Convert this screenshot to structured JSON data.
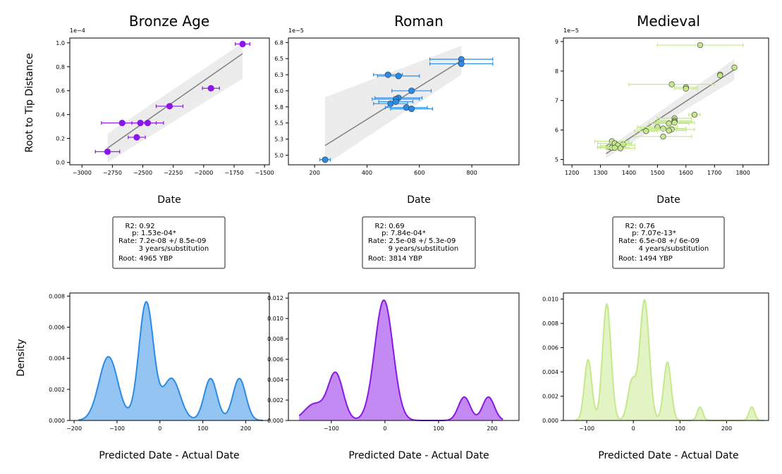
{
  "panel_titles": [
    "Bronze Age",
    "Roman",
    "Medieval"
  ],
  "ylabel_top": "Root to Tip Distance",
  "xlabel_top": "Date",
  "ylabel_bottom": "Density",
  "xlabel_bottom": "Predicted Date - Actual Date",
  "stats": [
    [
      "   R2: 0.92",
      "      p: 1.53e-04*",
      "Rate: 7.2e-08 +/ 8.5e-09",
      "         3 years/substitution",
      "Root: 4965 YBP"
    ],
    [
      "   R2: 0.69",
      "      p: 7.84e-04*",
      "Rate: 2.5e-08 +/ 5.3e-09",
      "         9 years/substitution",
      "Root: 3814 YBP"
    ],
    [
      "   R2: 0.76",
      "      p: 7.07e-13*",
      "Rate: 6.5e-08 +/ 6e-09",
      "         4 years/substitution",
      "Root: 1494 YBP"
    ]
  ],
  "colors": {
    "bronze": "#8a16e8",
    "roman": "#2a8be6",
    "medieval": "#c5e88a",
    "fit": "#808080",
    "band": "#ececec"
  },
  "chart_data": [
    {
      "type": "scatter",
      "title": "Bronze Age",
      "xlabel": "Date",
      "ylabel": "Root to Tip Distance",
      "exponent": "1e−4",
      "xlim": [
        -3100,
        -1460
      ],
      "ylim": [
        -0.02,
        1.04
      ],
      "xticks": [
        -3000,
        -2750,
        -2500,
        -2250,
        -2000,
        -1750,
        -1500
      ],
      "yticks": [
        0.0,
        0.2,
        0.4,
        0.6,
        0.8,
        1.0
      ],
      "x": [
        -1680,
        -2280,
        -1940,
        -2670,
        -2460,
        -2520,
        -2550,
        -2790
      ],
      "xerr": [
        60,
        110,
        70,
        170,
        130,
        130,
        70,
        100
      ],
      "y": [
        0.99,
        0.47,
        0.62,
        0.33,
        0.33,
        0.33,
        0.21,
        0.09
      ],
      "fit_x": [
        -2790,
        -1680
      ],
      "fit_y": [
        0.12,
        0.91
      ],
      "band_low": [
        0.0,
        0.7
      ],
      "band_high": [
        0.24,
        1.0
      ]
    },
    {
      "type": "scatter",
      "title": "Roman",
      "xlabel": "Date",
      "ylabel": "",
      "exponent": "1e−5",
      "xlim": [
        100,
        980
      ],
      "ylim": [
        4.85,
        6.82
      ],
      "xticks": [
        200,
        400,
        600,
        800
      ],
      "yticks": [
        5.0,
        5.25,
        5.5,
        5.75,
        6.0,
        6.25,
        6.5,
        6.75
      ],
      "x": [
        760,
        760,
        480,
        520,
        570,
        520,
        510,
        510,
        490,
        550,
        570,
        240
      ],
      "xerr": [
        120,
        120,
        55,
        80,
        75,
        90,
        90,
        65,
        65,
        80,
        80,
        20
      ],
      "y": [
        6.49,
        6.42,
        6.25,
        6.23,
        6.0,
        5.89,
        5.87,
        5.83,
        5.8,
        5.74,
        5.72,
        4.93
      ],
      "fit_x": [
        240,
        760
      ],
      "fit_y": [
        5.15,
        6.47
      ],
      "band_low": [
        4.85,
        6.25
      ],
      "band_high": [
        5.9,
        6.7
      ]
    },
    {
      "type": "scatter",
      "title": "Medieval",
      "xlabel": "Date",
      "ylabel": "",
      "exponent": "1e−5",
      "xlim": [
        1170,
        1890
      ],
      "ylim": [
        4.82,
        9.12
      ],
      "xticks": [
        1200,
        1300,
        1400,
        1500,
        1600,
        1700,
        1800
      ],
      "yticks": [
        5,
        6,
        7,
        8,
        9
      ],
      "x": [
        1650,
        1770,
        1720,
        1720,
        1550,
        1600,
        1600,
        1630,
        1560,
        1560,
        1560,
        1560,
        1540,
        1500,
        1520,
        1550,
        1540,
        1460,
        1520,
        1380,
        1340,
        1350,
        1360,
        1330,
        1340,
        1350,
        1370
      ],
      "xerr": [
        150,
        0,
        0,
        0,
        150,
        40,
        40,
        20,
        60,
        60,
        60,
        70,
        70,
        70,
        80,
        80,
        60,
        40,
        100,
        30,
        60,
        60,
        60,
        40,
        50,
        50,
        50
      ],
      "y": [
        8.88,
        8.12,
        7.88,
        7.85,
        7.55,
        7.45,
        7.4,
        6.52,
        6.4,
        6.32,
        6.28,
        6.25,
        6.22,
        6.1,
        6.05,
        6.02,
        5.98,
        5.96,
        5.78,
        5.52,
        5.62,
        5.55,
        5.48,
        5.43,
        5.4,
        5.4,
        5.38
      ],
      "fit_x": [
        1320,
        1770
      ],
      "fit_y": [
        5.2,
        8.05
      ],
      "band_low": [
        5.05,
        7.7
      ],
      "band_high": [
        5.35,
        8.4
      ]
    },
    {
      "type": "area",
      "xlabel": "Predicted Date - Actual Date",
      "ylabel": "Density",
      "xlim": [
        -210,
        255
      ],
      "ylim": [
        0,
        0.0082
      ],
      "xticks": [
        -200,
        -100,
        0,
        100,
        200
      ],
      "yticks": [
        0.0,
        0.002,
        0.004,
        0.006,
        0.008
      ],
      "peaks": [
        [
          -120,
          0.0041,
          22
        ],
        [
          -32,
          0.0076,
          17
        ],
        [
          27,
          0.0027,
          20
        ],
        [
          118,
          0.0027,
          15
        ],
        [
          185,
          0.0027,
          15
        ]
      ],
      "range": [
        -190,
        240
      ]
    },
    {
      "type": "area",
      "xlabel": "Predicted Date - Actual Date",
      "ylabel": "",
      "xlim": [
        -180,
        250
      ],
      "ylim": [
        0,
        0.0125
      ],
      "xticks": [
        -100,
        0,
        100,
        200
      ],
      "yticks": [
        0.0,
        0.002,
        0.004,
        0.006,
        0.008,
        0.01,
        0.012
      ],
      "peaks": [
        [
          -132,
          0.0016,
          18
        ],
        [
          -92,
          0.0046,
          14
        ],
        [
          -2,
          0.0118,
          17
        ],
        [
          148,
          0.0023,
          11
        ],
        [
          193,
          0.0023,
          11
        ]
      ],
      "range": [
        -160,
        220
      ]
    },
    {
      "type": "area",
      "xlabel": "Predicted Date - Actual Date",
      "ylabel": "",
      "xlim": [
        -150,
        290
      ],
      "ylim": [
        0,
        0.0105
      ],
      "xticks": [
        -100,
        0,
        100,
        200
      ],
      "yticks": [
        0.0,
        0.002,
        0.004,
        0.006,
        0.008,
        0.01
      ],
      "peaks": [
        [
          -97,
          0.005,
          8
        ],
        [
          -57,
          0.0096,
          9
        ],
        [
          -3,
          0.0032,
          9
        ],
        [
          24,
          0.0099,
          10
        ],
        [
          73,
          0.0048,
          8
        ],
        [
          143,
          0.0011,
          6
        ],
        [
          254,
          0.0011,
          6
        ]
      ],
      "range": [
        -125,
        280
      ]
    }
  ]
}
